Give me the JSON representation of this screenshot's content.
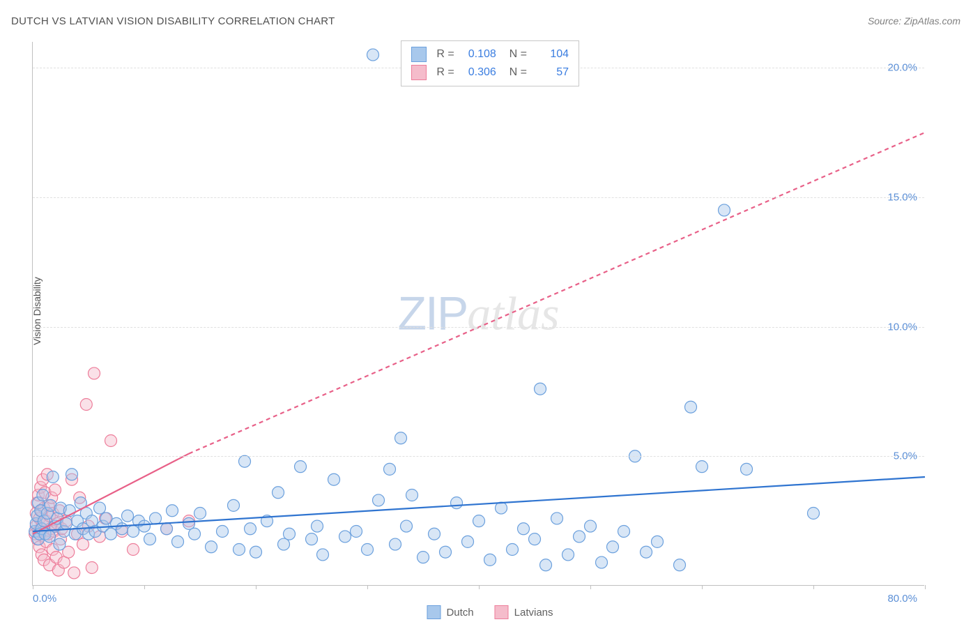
{
  "title": "DUTCH VS LATVIAN VISION DISABILITY CORRELATION CHART",
  "source": "Source: ZipAtlas.com",
  "ylabel": "Vision Disability",
  "watermark": {
    "zip": "ZIP",
    "atlas": "atlas"
  },
  "chart": {
    "type": "scatter",
    "xlim": [
      0,
      80
    ],
    "ylim": [
      0,
      21
    ],
    "xtick_positions": [
      0,
      10,
      20,
      30,
      40,
      50,
      60,
      70,
      80
    ],
    "xtick_label_left": "0.0%",
    "xtick_label_right": "80.0%",
    "ytick_positions": [
      5,
      10,
      15,
      20
    ],
    "ytick_labels": [
      "5.0%",
      "10.0%",
      "15.0%",
      "20.0%"
    ],
    "background_color": "#ffffff",
    "grid_color": "#e0e0e0",
    "axis_color": "#c0c0c0",
    "marker_radius": 8.5,
    "marker_stroke_width": 1.2,
    "marker_fill_opacity": 0.45,
    "trend_line_width": 2.2,
    "trend_dash_array": "6 5",
    "series": {
      "dutch": {
        "label": "Dutch",
        "color_fill": "#a8c8ec",
        "color_stroke": "#6ba0dd",
        "trend_color": "#2f74d0",
        "trend_p1": [
          0,
          2.1
        ],
        "trend_p2": [
          80,
          4.2
        ],
        "R": "0.108",
        "N": "104",
        "points": [
          [
            0.2,
            2.1
          ],
          [
            0.3,
            2.4
          ],
          [
            0.4,
            2.7
          ],
          [
            0.5,
            1.8
          ],
          [
            0.5,
            3.2
          ],
          [
            0.6,
            2.0
          ],
          [
            0.7,
            2.9
          ],
          [
            0.8,
            2.2
          ],
          [
            0.9,
            3.5
          ],
          [
            1.0,
            2.5
          ],
          [
            1.1,
            2.0
          ],
          [
            1.3,
            2.8
          ],
          [
            1.5,
            1.9
          ],
          [
            1.6,
            3.1
          ],
          [
            1.8,
            4.2
          ],
          [
            2.0,
            2.3
          ],
          [
            2.2,
            2.6
          ],
          [
            2.4,
            1.6
          ],
          [
            2.5,
            3.0
          ],
          [
            2.8,
            2.1
          ],
          [
            3.0,
            2.4
          ],
          [
            3.3,
            2.9
          ],
          [
            3.5,
            4.3
          ],
          [
            3.8,
            2.0
          ],
          [
            4.0,
            2.5
          ],
          [
            4.3,
            3.2
          ],
          [
            4.5,
            2.2
          ],
          [
            4.8,
            2.8
          ],
          [
            5.0,
            2.0
          ],
          [
            5.3,
            2.5
          ],
          [
            5.6,
            2.1
          ],
          [
            6.0,
            3.0
          ],
          [
            6.3,
            2.3
          ],
          [
            6.6,
            2.6
          ],
          [
            7.0,
            2.0
          ],
          [
            7.5,
            2.4
          ],
          [
            8.0,
            2.2
          ],
          [
            8.5,
            2.7
          ],
          [
            9.0,
            2.1
          ],
          [
            9.5,
            2.5
          ],
          [
            10.0,
            2.3
          ],
          [
            10.5,
            1.8
          ],
          [
            11.0,
            2.6
          ],
          [
            12.0,
            2.2
          ],
          [
            12.5,
            2.9
          ],
          [
            13.0,
            1.7
          ],
          [
            14.0,
            2.4
          ],
          [
            14.5,
            2.0
          ],
          [
            15.0,
            2.8
          ],
          [
            16.0,
            1.5
          ],
          [
            17.0,
            2.1
          ],
          [
            18.0,
            3.1
          ],
          [
            18.5,
            1.4
          ],
          [
            19.0,
            4.8
          ],
          [
            19.5,
            2.2
          ],
          [
            20.0,
            1.3
          ],
          [
            21.0,
            2.5
          ],
          [
            22.0,
            3.6
          ],
          [
            22.5,
            1.6
          ],
          [
            23.0,
            2.0
          ],
          [
            24.0,
            4.6
          ],
          [
            25.0,
            1.8
          ],
          [
            25.5,
            2.3
          ],
          [
            26.0,
            1.2
          ],
          [
            27.0,
            4.1
          ],
          [
            28.0,
            1.9
          ],
          [
            29.0,
            2.1
          ],
          [
            30.0,
            1.4
          ],
          [
            31.0,
            3.3
          ],
          [
            32.0,
            4.5
          ],
          [
            32.5,
            1.6
          ],
          [
            33.0,
            5.7
          ],
          [
            33.5,
            2.3
          ],
          [
            34.0,
            3.5
          ],
          [
            35.0,
            1.1
          ],
          [
            36.0,
            2.0
          ],
          [
            37.0,
            1.3
          ],
          [
            38.0,
            3.2
          ],
          [
            39.0,
            1.7
          ],
          [
            40.0,
            2.5
          ],
          [
            41.0,
            1.0
          ],
          [
            42.0,
            3.0
          ],
          [
            43.0,
            1.4
          ],
          [
            44.0,
            2.2
          ],
          [
            45.0,
            1.8
          ],
          [
            45.5,
            7.6
          ],
          [
            46.0,
            0.8
          ],
          [
            47.0,
            2.6
          ],
          [
            48.0,
            1.2
          ],
          [
            49.0,
            1.9
          ],
          [
            50.0,
            2.3
          ],
          [
            51.0,
            0.9
          ],
          [
            52.0,
            1.5
          ],
          [
            53.0,
            2.1
          ],
          [
            54.0,
            5.0
          ],
          [
            55.0,
            1.3
          ],
          [
            56.0,
            1.7
          ],
          [
            58.0,
            0.8
          ],
          [
            59.0,
            6.9
          ],
          [
            60.0,
            4.6
          ],
          [
            62.0,
            14.5
          ],
          [
            64.0,
            4.5
          ],
          [
            70.0,
            2.8
          ],
          [
            30.5,
            20.5
          ]
        ]
      },
      "latvians": {
        "label": "Latvians",
        "color_fill": "#f5bccb",
        "color_stroke": "#ed7d9a",
        "trend_color": "#e86088",
        "trend_solid_p1": [
          0,
          2.0
        ],
        "trend_solid_p2": [
          14,
          5.1
        ],
        "trend_dash_p1": [
          14,
          5.1
        ],
        "trend_dash_p2": [
          80,
          17.5
        ],
        "R": "0.306",
        "N": "57",
        "points": [
          [
            0.2,
            2.0
          ],
          [
            0.3,
            2.3
          ],
          [
            0.3,
            2.8
          ],
          [
            0.4,
            1.8
          ],
          [
            0.4,
            3.2
          ],
          [
            0.5,
            2.1
          ],
          [
            0.5,
            3.5
          ],
          [
            0.6,
            1.5
          ],
          [
            0.6,
            2.6
          ],
          [
            0.7,
            2.2
          ],
          [
            0.7,
            3.8
          ],
          [
            0.8,
            1.2
          ],
          [
            0.8,
            2.9
          ],
          [
            0.9,
            2.4
          ],
          [
            0.9,
            4.1
          ],
          [
            1.0,
            1.0
          ],
          [
            1.0,
            3.0
          ],
          [
            1.1,
            2.1
          ],
          [
            1.1,
            3.6
          ],
          [
            1.2,
            1.7
          ],
          [
            1.2,
            2.5
          ],
          [
            1.3,
            4.3
          ],
          [
            1.4,
            2.0
          ],
          [
            1.4,
            3.1
          ],
          [
            1.5,
            0.8
          ],
          [
            1.5,
            2.7
          ],
          [
            1.6,
            2.2
          ],
          [
            1.7,
            3.4
          ],
          [
            1.8,
            1.4
          ],
          [
            1.8,
            2.8
          ],
          [
            1.9,
            2.1
          ],
          [
            2.0,
            3.7
          ],
          [
            2.1,
            1.1
          ],
          [
            2.2,
            2.4
          ],
          [
            2.3,
            0.6
          ],
          [
            2.4,
            2.9
          ],
          [
            2.5,
            1.8
          ],
          [
            2.6,
            2.2
          ],
          [
            2.8,
            0.9
          ],
          [
            3.0,
            2.5
          ],
          [
            3.2,
            1.3
          ],
          [
            3.5,
            4.1
          ],
          [
            3.7,
            0.5
          ],
          [
            4.0,
            2.0
          ],
          [
            4.2,
            3.4
          ],
          [
            4.5,
            1.6
          ],
          [
            4.8,
            7.0
          ],
          [
            5.0,
            2.3
          ],
          [
            5.3,
            0.7
          ],
          [
            5.5,
            8.2
          ],
          [
            6.0,
            1.9
          ],
          [
            6.5,
            2.6
          ],
          [
            7.0,
            5.6
          ],
          [
            8.0,
            2.1
          ],
          [
            9.0,
            1.4
          ],
          [
            12.0,
            2.2
          ],
          [
            14.0,
            2.5
          ]
        ]
      }
    }
  },
  "bottom_legend": [
    {
      "label": "Dutch",
      "fill": "#a8c8ec",
      "stroke": "#6ba0dd"
    },
    {
      "label": "Latvians",
      "fill": "#f5bccb",
      "stroke": "#ed7d9a"
    }
  ]
}
